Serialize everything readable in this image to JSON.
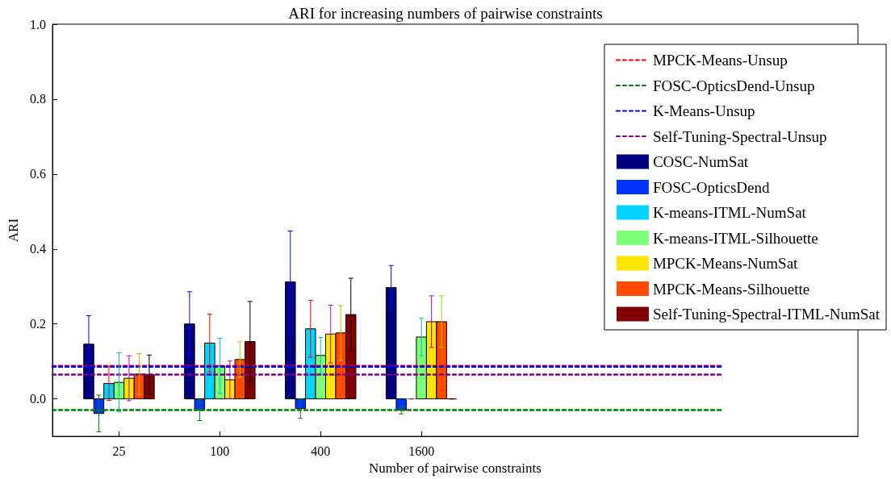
{
  "chart_data": {
    "type": "bar",
    "title": "ARI for increasing numbers of pairwise constraints",
    "xlabel": "Number of pairwise constraints",
    "ylabel": "ARI",
    "categories": [
      "25",
      "100",
      "400",
      "1600"
    ],
    "series": [
      {
        "name": "COSC-NumSat",
        "color": "#000080",
        "values": [
          0.146,
          0.2,
          0.312,
          0.297
        ],
        "errors": [
          0.076,
          0.086,
          0.136,
          0.059
        ]
      },
      {
        "name": "FOSC-OpticsDend",
        "color": "#0033ff",
        "values": [
          -0.039,
          -0.03,
          -0.026,
          -0.03
        ],
        "errors": [
          0.049,
          0.028,
          0.026,
          0.01
        ]
      },
      {
        "name": "K-means-ITML-NumSat",
        "color": "#00d4ff",
        "values": [
          0.041,
          0.149,
          0.187,
          0
        ],
        "errors": [
          0.045,
          0.077,
          0.076,
          0
        ]
      },
      {
        "name": "K-means-ITML-Silhouette",
        "color": "#7dff7a",
        "values": [
          0.044,
          0.088,
          0.116,
          0.165
        ],
        "errors": [
          0.079,
          0.074,
          0.048,
          0.05
        ]
      },
      {
        "name": "MPCK-Means-NumSat",
        "color": "#ffe600",
        "values": [
          0.055,
          0.051,
          0.173,
          0.206
        ],
        "errors": [
          0.06,
          0.05,
          0.077,
          0.069
        ]
      },
      {
        "name": "MPCK-Means-Silhouette",
        "color": "#ff4a00",
        "values": [
          0.066,
          0.105,
          0.176,
          0.206
        ],
        "errors": [
          0.055,
          0.047,
          0.073,
          0.069
        ]
      },
      {
        "name": "Self-Tuning-Spectral-ITML-NumSat",
        "color": "#800000",
        "values": [
          0.065,
          0.153,
          0.225,
          0
        ],
        "errors": [
          0.052,
          0.107,
          0.097,
          0
        ]
      }
    ],
    "ref_lines": [
      {
        "axis": "y",
        "value": 0.088,
        "label": "MPCK-Means-Unsup",
        "color": "#ff0000",
        "line_style": "dashed"
      },
      {
        "axis": "y",
        "value": -0.03,
        "label": "FOSC-OpticsDend-Unsup",
        "color": "#008000",
        "line_style": "dashed"
      },
      {
        "axis": "y",
        "value": 0.086,
        "label": "K-Means-Unsup",
        "color": "#0000ff",
        "line_style": "dashed"
      },
      {
        "axis": "y",
        "value": 0.065,
        "label": "Self-Tuning-Spectral-Unsup",
        "color": "#800080",
        "line_style": "dashed"
      }
    ],
    "ylim": [
      -0.1,
      1.0
    ],
    "yticks": [
      {
        "value": 0,
        "label": "0.0"
      },
      {
        "value": 0.2,
        "label": "0.2"
      },
      {
        "value": 0.4,
        "label": "0.4"
      },
      {
        "value": 0.6,
        "label": "0.6"
      },
      {
        "value": 0.8,
        "label": "0.8"
      },
      {
        "value": 1.0,
        "label": "1.0"
      }
    ],
    "grid": false,
    "legend": "top right"
  }
}
